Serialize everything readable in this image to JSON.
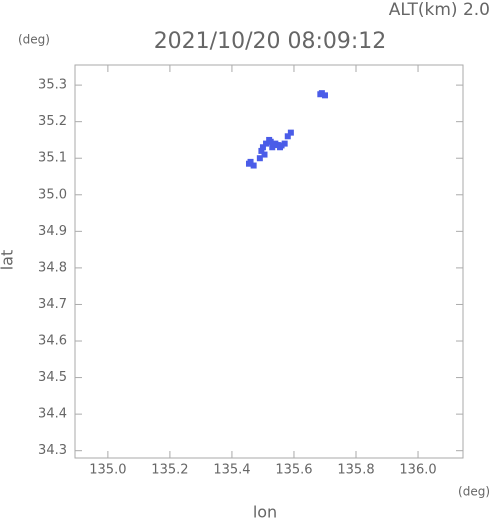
{
  "chart_data": {
    "type": "scatter",
    "title": "2021/10/20 08:09:12",
    "subtitle": "ALT(km) 2.0",
    "y_unit": "(deg)",
    "x_unit": "(deg)",
    "x_label": "lon",
    "y_label": "lat",
    "xlim": [
      134.894,
      136.145
    ],
    "ylim": [
      34.28,
      35.355
    ],
    "xticks": [
      {
        "value": 135.0,
        "label": "135.0"
      },
      135.2,
      135.4,
      135.6,
      135.8,
      {
        "value": 136.0,
        "label": "136.0"
      }
    ],
    "yticks": [
      34.3,
      34.4,
      34.5,
      34.6,
      34.7,
      34.8,
      34.9,
      {
        "value": 35.0,
        "label": "35.0"
      },
      35.1,
      35.2,
      35.3
    ],
    "series": [
      {
        "color": "#4a5ce8",
        "x": [
          135.455,
          135.46,
          135.47,
          135.49,
          135.495,
          135.5,
          135.505,
          135.51,
          135.52,
          135.525,
          135.53,
          135.54,
          135.548,
          135.555,
          135.56,
          135.57,
          135.58,
          135.59,
          135.685,
          135.69,
          135.7
        ],
        "y": [
          35.085,
          35.09,
          35.08,
          35.1,
          35.12,
          35.13,
          35.11,
          35.14,
          35.15,
          35.145,
          35.13,
          35.14,
          35.136,
          35.13,
          35.135,
          35.14,
          35.16,
          35.17,
          35.275,
          35.278,
          35.272
        ]
      }
    ]
  }
}
